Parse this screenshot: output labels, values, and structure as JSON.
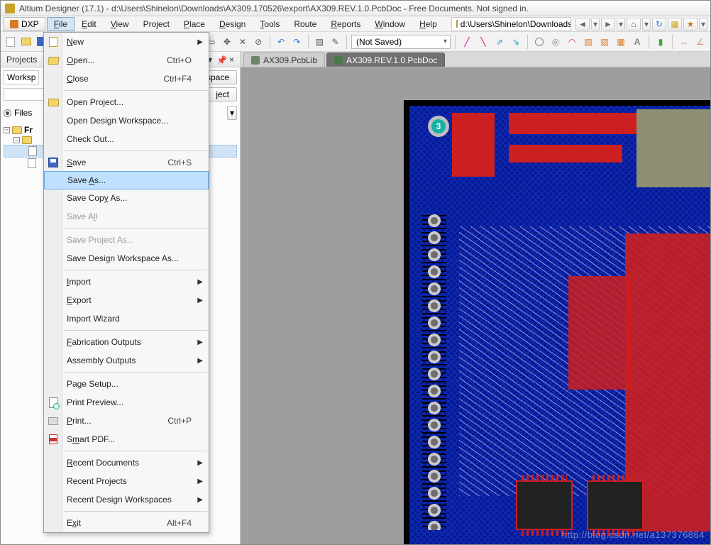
{
  "title": "Altium Designer (17.1) - d:\\Users\\Shinelon\\Downloads\\AX309.170526\\export\\AX309.REV.1.0.PcbDoc - Free Documents. Not signed in.",
  "dxp_label": "DXP",
  "menubar": {
    "items": [
      "File",
      "Edit",
      "View",
      "Project",
      "Place",
      "Design",
      "Tools",
      "Route",
      "Reports",
      "Window",
      "Help"
    ],
    "underlines": [
      "F",
      "E",
      "V",
      "",
      "P",
      "D",
      "T",
      "U",
      "R",
      "W",
      "H"
    ],
    "active_index": 0,
    "path_text": "d:\\Users\\Shinelon\\Downloads\\"
  },
  "toolbar": {
    "combo_text": "(Not Saved)"
  },
  "projects_panel": {
    "title": "Projects",
    "workspace_label": "Worksp",
    "workspace_btn": "space",
    "project_btn": "ject",
    "files_radio": "Files",
    "tree": {
      "root": "Fr",
      "sub": "",
      "leaf": ""
    }
  },
  "file_menu": [
    {
      "type": "item",
      "icon": "new",
      "label": "New",
      "ul": "N",
      "arrow": true
    },
    {
      "type": "item",
      "icon": "open",
      "label": "Open...",
      "ul": "O",
      "shortcut": "Ctrl+O"
    },
    {
      "type": "item",
      "label": "Close",
      "ul": "C",
      "shortcut": "Ctrl+F4"
    },
    {
      "type": "sep"
    },
    {
      "type": "item",
      "icon": "openprj",
      "label": "Open Project...",
      "ul": ""
    },
    {
      "type": "item",
      "label": "Open Design Workspace...",
      "ul": ""
    },
    {
      "type": "item",
      "label": "Check Out...",
      "ul": ""
    },
    {
      "type": "sep"
    },
    {
      "type": "item",
      "icon": "save",
      "label": "Save",
      "ul": "S",
      "shortcut": "Ctrl+S"
    },
    {
      "type": "item",
      "label": "Save As...",
      "ul": "A",
      "hover": true
    },
    {
      "type": "item",
      "label": "Save Copy As...",
      "ul": "y"
    },
    {
      "type": "item",
      "label": "Save All",
      "ul": "l",
      "disabled": true
    },
    {
      "type": "sep"
    },
    {
      "type": "item",
      "label": "Save Project As...",
      "disabled": true
    },
    {
      "type": "item",
      "label": "Save Design Workspace As..."
    },
    {
      "type": "sep"
    },
    {
      "type": "item",
      "label": "Import",
      "ul": "I",
      "arrow": true
    },
    {
      "type": "item",
      "label": "Export",
      "ul": "E",
      "arrow": true
    },
    {
      "type": "item",
      "label": "Import Wizard"
    },
    {
      "type": "sep"
    },
    {
      "type": "item",
      "label": "Fabrication Outputs",
      "ul": "F",
      "arrow": true
    },
    {
      "type": "item",
      "label": "Assembly Outputs",
      "arrow": true
    },
    {
      "type": "sep"
    },
    {
      "type": "item",
      "label": "Page Setup...",
      "ul": "U"
    },
    {
      "type": "item",
      "icon": "preview",
      "label": "Print Preview...",
      "ul": "V"
    },
    {
      "type": "item",
      "icon": "print",
      "label": "Print...",
      "ul": "P",
      "shortcut": "Ctrl+P"
    },
    {
      "type": "item",
      "icon": "pdf",
      "label": "Smart PDF...",
      "ul": "m"
    },
    {
      "type": "sep"
    },
    {
      "type": "item",
      "label": "Recent Documents",
      "ul": "R",
      "arrow": true
    },
    {
      "type": "item",
      "label": "Recent Projects",
      "arrow": true
    },
    {
      "type": "item",
      "label": "Recent Design Workspaces",
      "arrow": true
    },
    {
      "type": "sep"
    },
    {
      "type": "item",
      "label": "Exit",
      "ul": "x",
      "shortcut": "Alt+F4"
    }
  ],
  "doc_tabs": {
    "items": [
      {
        "label": "AX309.PcbLib",
        "active": false
      },
      {
        "label": "AX309.REV.1.0.PcbDoc",
        "active": true
      }
    ]
  },
  "pcb": {
    "board_number": "3",
    "colors": {
      "substrate": "#031a8f",
      "hatch": "#1028b0",
      "copper_top": "#cc1f1f",
      "silk_olive": "#8e8e72",
      "via_ring": "#c9c9c9",
      "via_drill": "#6d6d6d",
      "teal_badge": "#17b0a6",
      "background_desk": "#9e9e9e"
    }
  },
  "watermark": "http://blog.csdn.net/a137376864"
}
